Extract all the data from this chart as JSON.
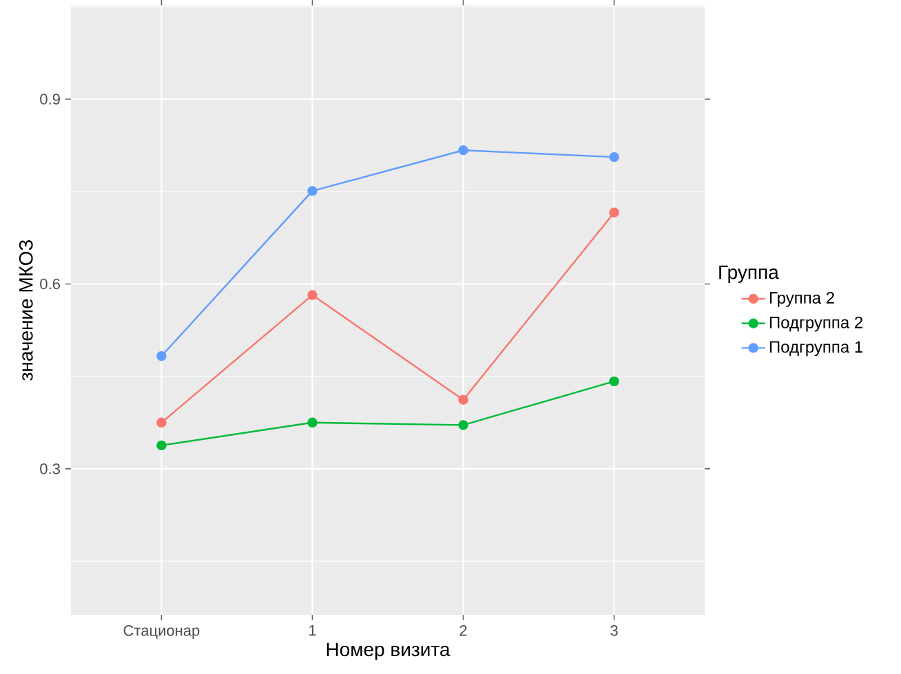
{
  "chart_data": {
    "type": "line",
    "xlabel": "Номер визита",
    "ylabel": "значение МКОЗ",
    "legend_title": "Группа",
    "categories": [
      "Стационар",
      "1",
      "2",
      "3"
    ],
    "series": [
      {
        "name": "Группа 2",
        "color": "#f8766d",
        "values": [
          0.375,
          0.582,
          0.412,
          0.716
        ]
      },
      {
        "name": "Подгруппа 2",
        "color": "#00ba38",
        "values": [
          0.338,
          0.375,
          0.371,
          0.442
        ]
      },
      {
        "name": "Подгруппа 1",
        "color": "#619cff",
        "values": [
          0.483,
          0.751,
          0.817,
          0.806
        ]
      }
    ],
    "ylim": [
      0.063,
      1.052
    ],
    "yticks": [
      0.3,
      0.6,
      0.9
    ],
    "grid": true,
    "legend": "right",
    "marker": "circle",
    "line_style": "solid"
  }
}
